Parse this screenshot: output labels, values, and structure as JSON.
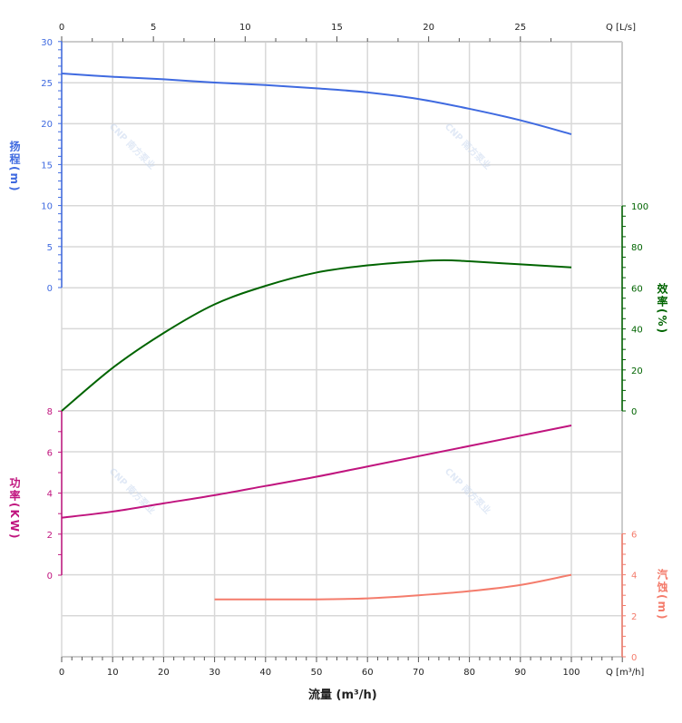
{
  "chart_data": {
    "type": "line",
    "xlabel": "流量 (m³/h)",
    "x_axis_bottom": {
      "label": "Q [m³/h]",
      "range": [
        0,
        110
      ],
      "ticks": [
        0,
        10,
        20,
        30,
        40,
        50,
        60,
        70,
        80,
        90,
        100
      ]
    },
    "x_axis_top": {
      "label": "Q [L/s]",
      "ticks": [
        0,
        5,
        10,
        15,
        20,
        25
      ]
    },
    "grid": true,
    "axes": {
      "head": {
        "label_text": "扬程",
        "unit": "(m)",
        "side": "left",
        "ticks": [
          0,
          5,
          10,
          15,
          20,
          25,
          30
        ],
        "color": "#3f6ae0"
      },
      "efficiency": {
        "label_text": "效率",
        "unit": "(%)",
        "side": "right",
        "ticks": [
          0,
          20,
          40,
          60,
          80,
          100
        ],
        "color": "#006400"
      },
      "power": {
        "label_text": "功率",
        "unit": "(KW)",
        "side": "left",
        "ticks": [
          0,
          2,
          4,
          6,
          8
        ],
        "color": "#c0147e"
      },
      "npsh": {
        "label_text": "汽蚀",
        "unit": "(m)",
        "side": "right",
        "ticks": [
          0,
          2,
          4,
          6
        ],
        "color": "#f47c6c"
      }
    },
    "series": [
      {
        "axis": "head",
        "x": [
          0,
          10,
          20,
          30,
          40,
          50,
          60,
          70,
          80,
          90,
          100
        ],
        "y": [
          26.1,
          25.7,
          25.4,
          25.0,
          24.7,
          24.3,
          23.8,
          23.0,
          21.8,
          20.4,
          18.7
        ]
      },
      {
        "axis": "efficiency",
        "x": [
          0,
          10,
          20,
          30,
          40,
          50,
          60,
          70,
          75,
          80,
          90,
          100
        ],
        "y": [
          0,
          21,
          38,
          52,
          61,
          67.5,
          71,
          73,
          73.5,
          73,
          71.5,
          70
        ]
      },
      {
        "axis": "power",
        "x": [
          0,
          10,
          20,
          30,
          40,
          50,
          60,
          70,
          80,
          90,
          100
        ],
        "y": [
          2.8,
          3.1,
          3.5,
          3.9,
          4.35,
          4.8,
          5.3,
          5.8,
          6.3,
          6.8,
          7.3
        ]
      },
      {
        "axis": "npsh",
        "x": [
          30,
          40,
          50,
          60,
          70,
          80,
          90,
          100
        ],
        "y": [
          2.8,
          2.8,
          2.8,
          2.85,
          3.0,
          3.2,
          3.5,
          4.0
        ]
      }
    ]
  },
  "watermark": "CNP 南方泵业"
}
